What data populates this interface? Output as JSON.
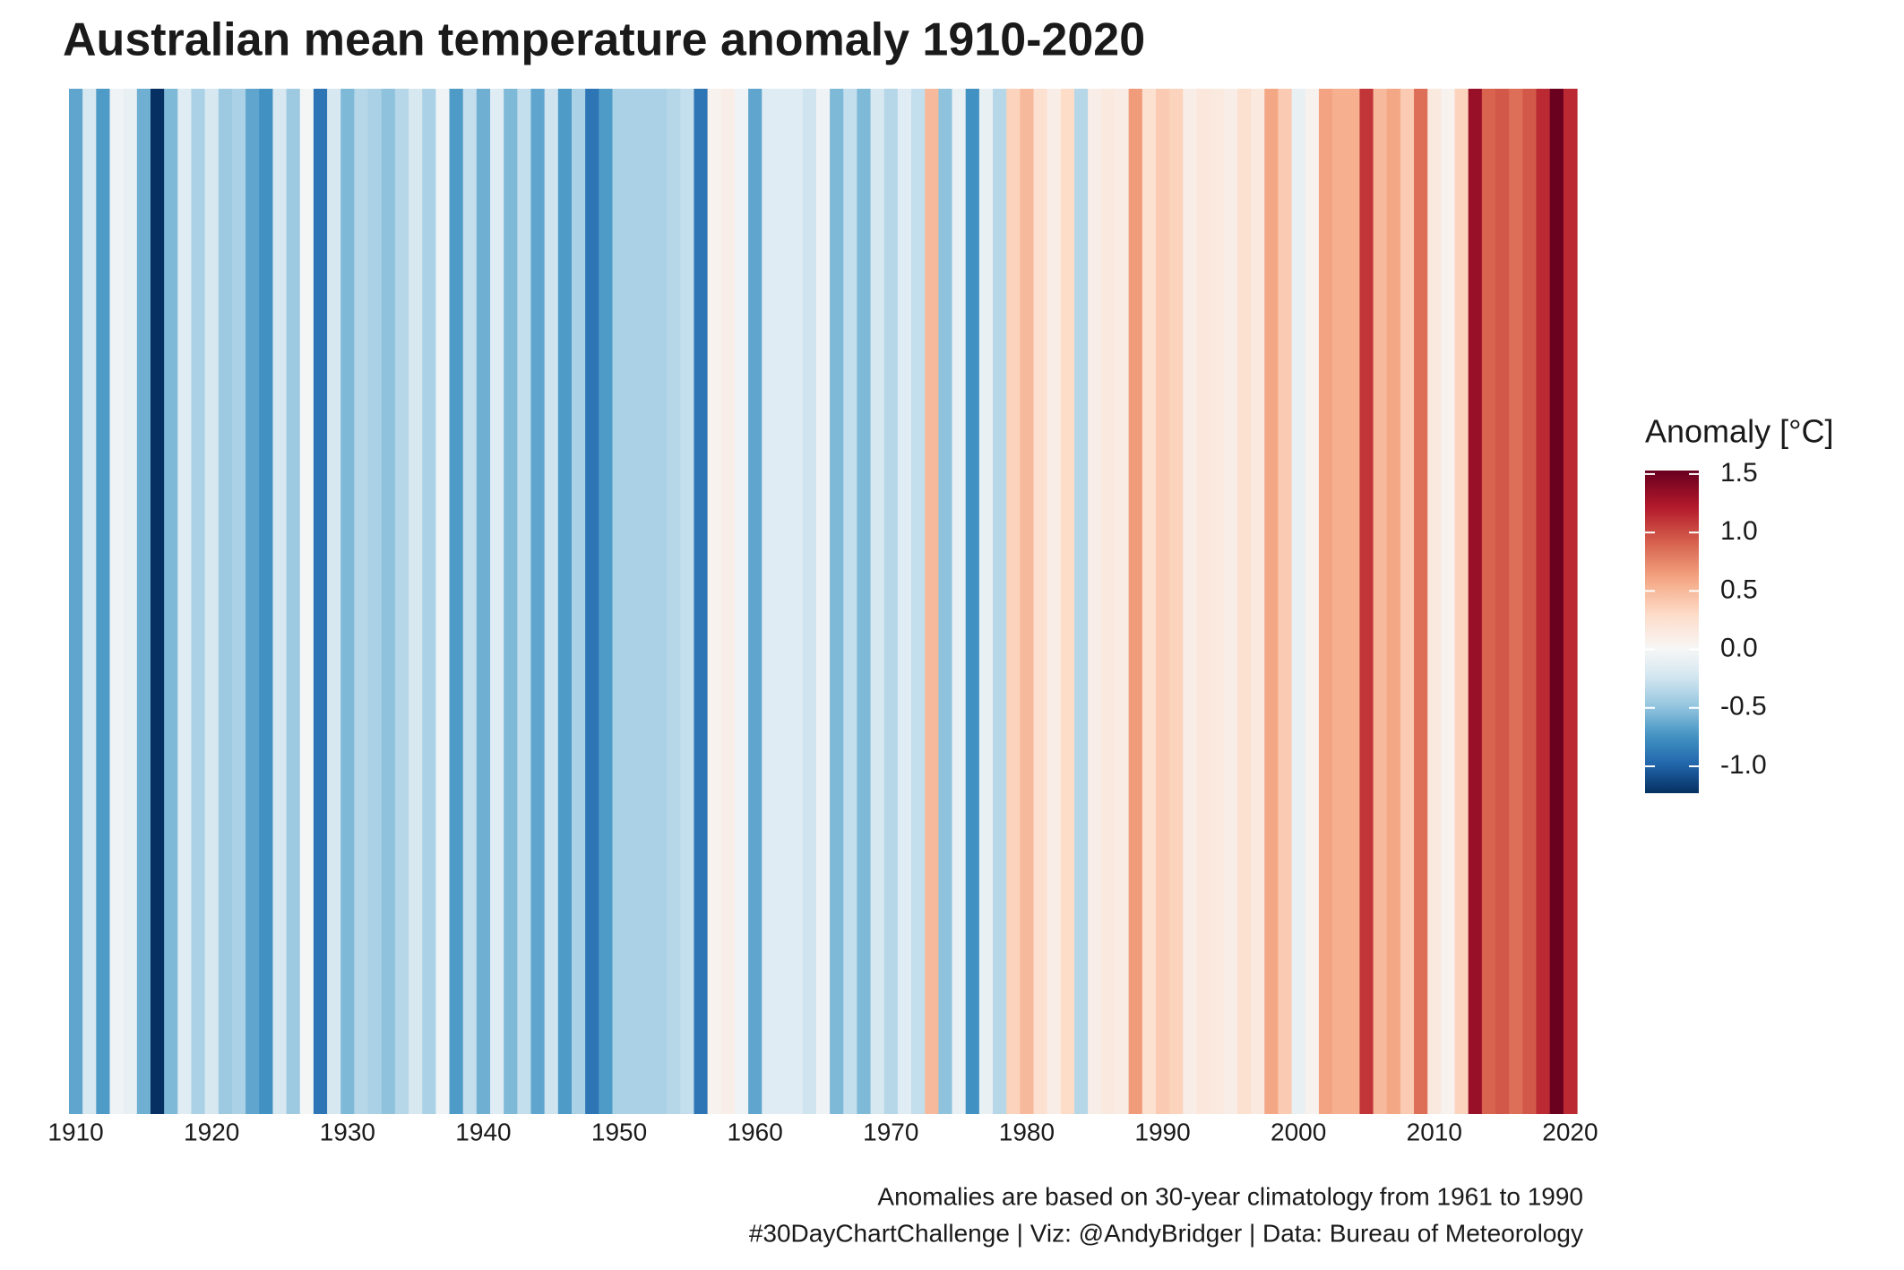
{
  "chart_data": {
    "type": "stripes",
    "title": "Australian mean temperature anomaly 1910-2020",
    "caption": [
      "Anomalies are based on 30-year climatology from 1961 to 1990",
      "#30DayChartChallenge | Viz: @AndyBridger | Data: Bureau of Meteorology"
    ],
    "x": [
      1910,
      1911,
      1912,
      1913,
      1914,
      1915,
      1916,
      1917,
      1918,
      1919,
      1920,
      1921,
      1922,
      1923,
      1924,
      1925,
      1926,
      1927,
      1928,
      1929,
      1930,
      1931,
      1932,
      1933,
      1934,
      1935,
      1936,
      1937,
      1938,
      1939,
      1940,
      1941,
      1942,
      1943,
      1944,
      1945,
      1946,
      1947,
      1948,
      1949,
      1950,
      1951,
      1952,
      1953,
      1954,
      1955,
      1956,
      1957,
      1958,
      1959,
      1960,
      1961,
      1962,
      1963,
      1964,
      1965,
      1966,
      1967,
      1968,
      1969,
      1970,
      1971,
      1972,
      1973,
      1974,
      1975,
      1976,
      1977,
      1978,
      1979,
      1980,
      1981,
      1982,
      1983,
      1984,
      1985,
      1986,
      1987,
      1988,
      1989,
      1990,
      1991,
      1992,
      1993,
      1994,
      1995,
      1996,
      1997,
      1998,
      1999,
      2000,
      2001,
      2002,
      2003,
      2004,
      2005,
      2006,
      2007,
      2008,
      2009,
      2010,
      2011,
      2012,
      2013,
      2014,
      2015,
      2016,
      2017,
      2018,
      2019,
      2020
    ],
    "values": [
      -0.65,
      -0.2,
      -0.7,
      -0.05,
      -0.1,
      -0.6,
      -1.23,
      -0.55,
      -0.15,
      -0.4,
      -0.2,
      -0.45,
      -0.4,
      -0.65,
      -0.75,
      -0.2,
      -0.45,
      -0.02,
      -0.9,
      -0.2,
      -0.55,
      -0.35,
      -0.4,
      -0.5,
      -0.35,
      -0.2,
      -0.4,
      -0.05,
      -0.7,
      -0.3,
      -0.6,
      -0.15,
      -0.55,
      -0.3,
      -0.65,
      -0.25,
      -0.7,
      -0.4,
      -0.9,
      -0.7,
      -0.4,
      -0.4,
      -0.4,
      -0.4,
      -0.35,
      -0.3,
      -0.9,
      0.05,
      0.1,
      -0.05,
      -0.65,
      -0.15,
      -0.15,
      -0.15,
      -0.25,
      -0.05,
      -0.55,
      -0.3,
      -0.55,
      -0.2,
      -0.35,
      -0.15,
      -0.3,
      0.5,
      -0.5,
      -0.1,
      -0.75,
      -0.1,
      -0.35,
      0.35,
      0.5,
      0.25,
      0.1,
      0.3,
      -0.35,
      0.1,
      0.15,
      0.12,
      0.65,
      0.25,
      0.4,
      0.35,
      0.1,
      0.18,
      0.15,
      0.1,
      0.25,
      0.15,
      0.6,
      0.4,
      -0.1,
      0.05,
      0.62,
      0.55,
      0.55,
      1.1,
      0.5,
      0.6,
      0.4,
      0.85,
      0.15,
      0.05,
      0.35,
      1.33,
      0.9,
      0.95,
      0.85,
      0.95,
      1.15,
      1.52,
      1.15
    ],
    "xlim": [
      1909.5,
      2020.5
    ],
    "xticks": [
      1910,
      1920,
      1930,
      1940,
      1950,
      1960,
      1970,
      1980,
      1990,
      2000,
      2010,
      2020
    ],
    "legend_title": "Anomaly [°C]",
    "clim": [
      -1.23,
      1.53
    ],
    "color_midpoint": 0,
    "colors": [
      "#053061",
      "#2166ac",
      "#4393c3",
      "#92c5de",
      "#d1e5f0",
      "#f7f7f7",
      "#fddbc7",
      "#f4a582",
      "#d6604d",
      "#b2182b",
      "#67001f"
    ],
    "cticks": [
      {
        "value": -1,
        "label": "-1.0"
      },
      -0.5,
      {
        "value": 0,
        "label": "0.0"
      },
      0.5,
      {
        "value": 1,
        "label": "1.0"
      },
      1.5
    ]
  }
}
